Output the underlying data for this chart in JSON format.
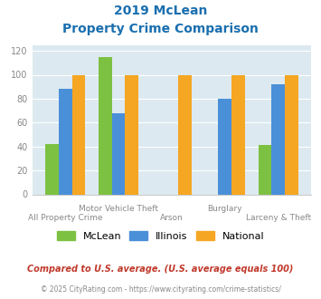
{
  "title_line1": "2019 McLean",
  "title_line2": "Property Crime Comparison",
  "title_color": "#1a6faf",
  "categories": [
    "All Property Crime",
    "Motor Vehicle Theft",
    "Arson",
    "Burglary",
    "Larceny & Theft"
  ],
  "mclean": [
    42,
    115,
    null,
    null,
    41
  ],
  "illinois": [
    88,
    68,
    null,
    80,
    92
  ],
  "national": [
    100,
    100,
    100,
    100,
    100
  ],
  "mclean_color": "#7dc142",
  "illinois_color": "#4a90d9",
  "national_color": "#f5a623",
  "ylim": [
    0,
    125
  ],
  "yticks": [
    0,
    20,
    40,
    60,
    80,
    100,
    120
  ],
  "bg_color": "#dce9f0",
  "legend_labels": [
    "McLean",
    "Illinois",
    "National"
  ],
  "footnote1": "Compared to U.S. average. (U.S. average equals 100)",
  "footnote2": "© 2025 CityRating.com - https://www.cityrating.com/crime-statistics/",
  "footnote1_color": "#c0392b",
  "footnote2_color": "#888888",
  "upper_labels": [
    "Motor Vehicle Theft",
    "Burglary"
  ],
  "upper_label_idx": [
    1,
    3
  ],
  "lower_labels": [
    "All Property Crime",
    "Arson",
    "Larceny & Theft"
  ],
  "lower_label_idx": [
    0,
    2,
    4
  ]
}
